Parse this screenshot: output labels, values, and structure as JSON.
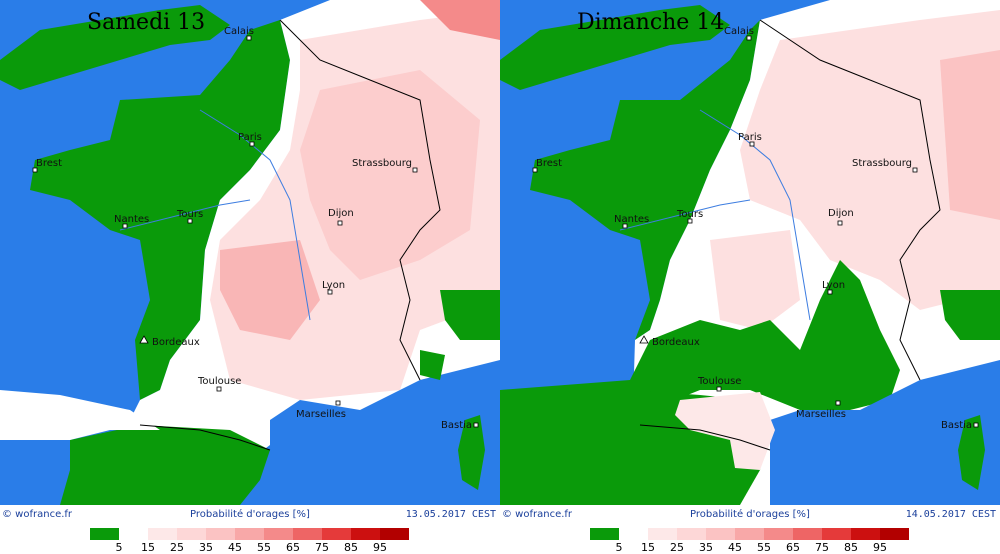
{
  "legend": {
    "colors": [
      "#0a9a0a",
      "#ffffff",
      "#fde8e8",
      "#fdd7d7",
      "#fbc3c3",
      "#f8a8a8",
      "#f48a8a",
      "#ee6565",
      "#e53a3a",
      "#cc1010",
      "#b20000"
    ],
    "ticks": [
      "5",
      "15",
      "25",
      "35",
      "45",
      "55",
      "65",
      "75",
      "85",
      "95"
    ]
  },
  "panels": [
    {
      "title": "Samedi 13",
      "source": "© wofrance.fr",
      "caption": "Probabilité d'orages [%]",
      "date": "13.05.2017 CEST",
      "cities": [
        "Calais",
        "Paris",
        "Brest",
        "Strassbourg",
        "Nantes",
        "Tours",
        "Dijon",
        "Lyon",
        "Bordeaux",
        "Toulouse",
        "Marseilles",
        "Bastia"
      ]
    },
    {
      "title": "Dimanche 14",
      "source": "© wofrance.fr",
      "caption": "Probabilité d'orages [%]",
      "date": "14.05.2017 CEST",
      "cities": [
        "Calais",
        "Paris",
        "Brest",
        "Strassbourg",
        "Nantes",
        "Tours",
        "Dijon",
        "Lyon",
        "Bordeaux",
        "Toulouse",
        "Marseilles",
        "Bastia"
      ]
    }
  ]
}
